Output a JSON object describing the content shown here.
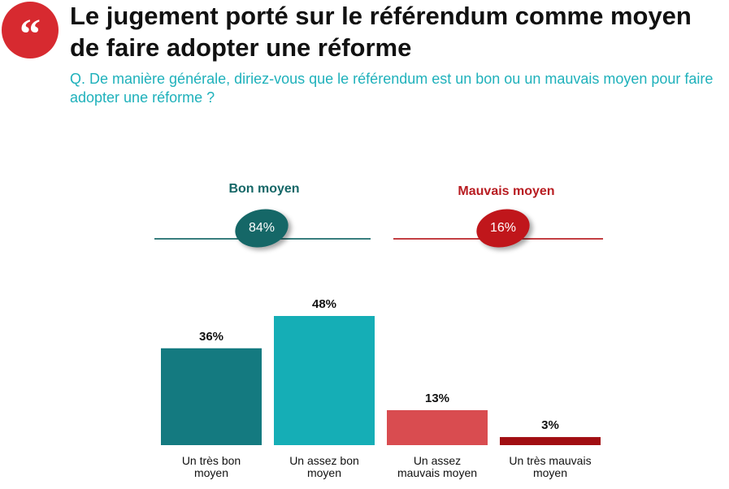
{
  "header": {
    "title": "Le jugement porté sur le référendum comme moyen de faire adopter une réforme",
    "question": "Q. De manière générale, diriez-vous que le référendum est un bon ou un mauvais moyen pour faire adopter une réforme ?",
    "quote_glyph": "“"
  },
  "groups": {
    "bon": {
      "label": "Bon moyen",
      "value_label": "84%",
      "color": "#156767"
    },
    "mauvais": {
      "label": "Mauvais moyen",
      "value_label": "16%",
      "color": "#b81d22"
    }
  },
  "chart_data": {
    "type": "bar",
    "categories": [
      [
        "Un très bon",
        "moyen"
      ],
      [
        "Un assez bon",
        "moyen"
      ],
      [
        "Un assez",
        "mauvais moyen"
      ],
      [
        "Un très mauvais",
        "moyen"
      ]
    ],
    "values": [
      36,
      48,
      13,
      3
    ],
    "value_labels": [
      "36%",
      "48%",
      "13%",
      "3%"
    ],
    "colors": [
      "#147a80",
      "#15aeb6",
      "#d94c50",
      "#a10e12"
    ],
    "ylim": [
      0,
      48
    ],
    "grid": false
  }
}
